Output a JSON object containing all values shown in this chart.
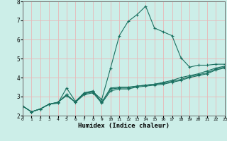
{
  "title": "",
  "xlabel": "Humidex (Indice chaleur)",
  "ylabel": "",
  "bg_color": "#cceee8",
  "grid_color": "#e8b8b8",
  "line_color": "#1a7060",
  "x_ticks": [
    0,
    1,
    2,
    3,
    4,
    5,
    6,
    7,
    8,
    9,
    10,
    11,
    12,
    13,
    14,
    15,
    16,
    17,
    18,
    19,
    20,
    21,
    22,
    23
  ],
  "ylim": [
    2,
    8
  ],
  "xlim": [
    0,
    23
  ],
  "series": [
    [
      2.5,
      2.2,
      2.35,
      2.6,
      2.65,
      3.45,
      2.75,
      3.2,
      3.25,
      2.85,
      4.5,
      6.2,
      6.95,
      7.3,
      7.75,
      6.6,
      6.4,
      6.2,
      5.05,
      4.55,
      4.65,
      4.65,
      4.7,
      4.7
    ],
    [
      2.5,
      2.2,
      2.35,
      2.6,
      2.7,
      3.1,
      2.7,
      3.2,
      3.3,
      2.7,
      3.45,
      3.5,
      3.5,
      3.55,
      3.6,
      3.65,
      3.75,
      3.85,
      4.0,
      4.1,
      4.2,
      4.35,
      4.5,
      4.6
    ],
    [
      2.5,
      2.2,
      2.35,
      2.6,
      2.7,
      3.1,
      2.7,
      3.15,
      3.25,
      2.7,
      3.4,
      3.45,
      3.45,
      3.55,
      3.6,
      3.65,
      3.7,
      3.8,
      3.9,
      4.05,
      4.15,
      4.25,
      4.45,
      4.55
    ],
    [
      2.5,
      2.2,
      2.35,
      2.6,
      2.7,
      3.05,
      2.7,
      3.1,
      3.2,
      2.65,
      3.3,
      3.4,
      3.4,
      3.5,
      3.55,
      3.6,
      3.65,
      3.75,
      3.85,
      4.0,
      4.1,
      4.2,
      4.4,
      4.5
    ]
  ]
}
